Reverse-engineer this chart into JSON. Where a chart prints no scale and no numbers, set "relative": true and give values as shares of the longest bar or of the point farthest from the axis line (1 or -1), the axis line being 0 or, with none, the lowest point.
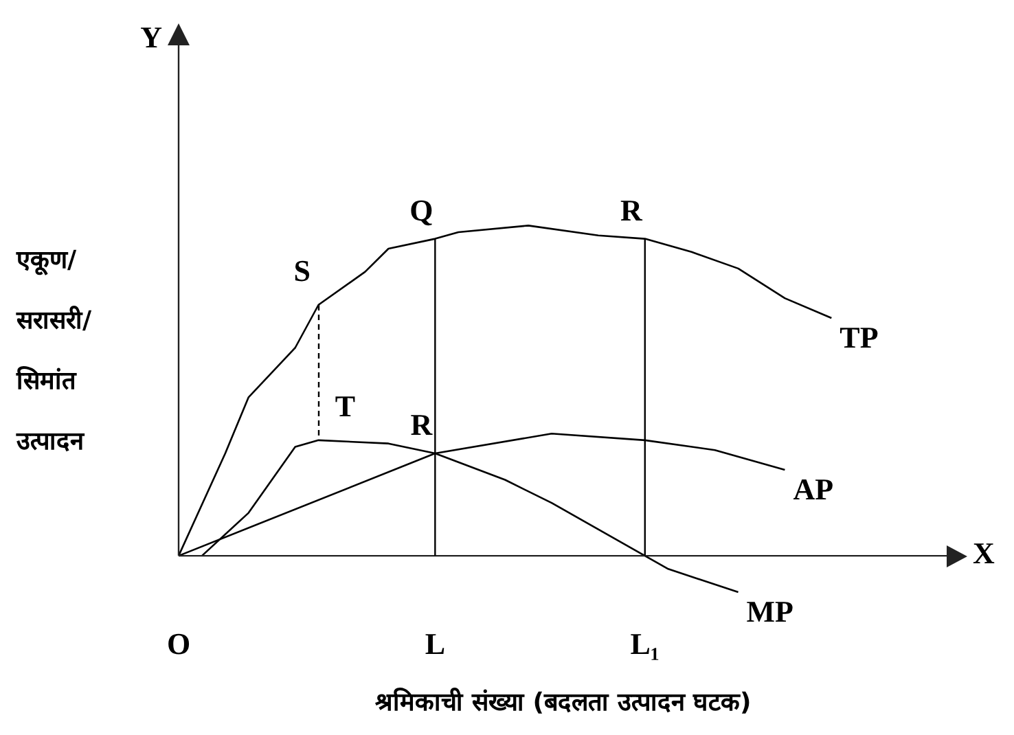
{
  "chart_data": {
    "type": "line",
    "relative": true,
    "xlabel": "श्रमिकाची संख्या (बदलता उत्पादन घटक)",
    "ylabel": "एकूण/ सरासरी/ सिमांत उत्पादन",
    "categories": [
      "O",
      null,
      null,
      null,
      null,
      null,
      null,
      null,
      null,
      null,
      null,
      "L",
      null,
      null,
      null,
      null,
      null,
      null,
      null,
      null,
      "L₁",
      null,
      null,
      null,
      null,
      null,
      null,
      null,
      null,
      null,
      null,
      null,
      null,
      null
    ],
    "grid": false,
    "legend": false,
    "marker": "none",
    "series": [
      {
        "name": "TP",
        "color": "#000000",
        "values": [
          0,
          null,
          0.31,
          0.48,
          null,
          0.63,
          0.76,
          null,
          0.86,
          0.93,
          null,
          0.96,
          0.98,
          null,
          null,
          1,
          null,
          null,
          0.97,
          null,
          0.96,
          null,
          0.92,
          null,
          0.87,
          null,
          0.78,
          null,
          0.72,
          null,
          null,
          null,
          null,
          null
        ]
      },
      {
        "name": "AP",
        "color": "#000000",
        "values": [
          0,
          null,
          null,
          null,
          null,
          null,
          null,
          null,
          null,
          null,
          null,
          0.31,
          null,
          null,
          null,
          null,
          0.37,
          null,
          null,
          null,
          0.35,
          null,
          null,
          0.32,
          null,
          null,
          0.26,
          null,
          null,
          null,
          null,
          null,
          null,
          null
        ]
      },
      {
        "name": "MP",
        "color": "#000000",
        "values": [
          null,
          0,
          null,
          0.13,
          null,
          0.33,
          0.35,
          null,
          null,
          0.34,
          null,
          0.31,
          null,
          null,
          0.23,
          null,
          0.16,
          null,
          0.08,
          null,
          0,
          -0.04,
          null,
          null,
          -0.11,
          null,
          null,
          null,
          null,
          null,
          null,
          null,
          null,
          null
        ]
      }
    ],
    "ref_lines": [
      {
        "axis": "x",
        "value": "L",
        "color": "#000000"
      },
      {
        "axis": "x",
        "value": "L₁",
        "color": "#000000"
      }
    ],
    "annotations": [
      "Y",
      "X",
      "S",
      "T",
      {
        "text": "Q",
        "x": "L",
        "y": 0.96
      },
      {
        "text": "R",
        "x": "L₁",
        "y": 0.96
      },
      {
        "text": "R",
        "x": "L",
        "y": 0.31
      }
    ]
  }
}
